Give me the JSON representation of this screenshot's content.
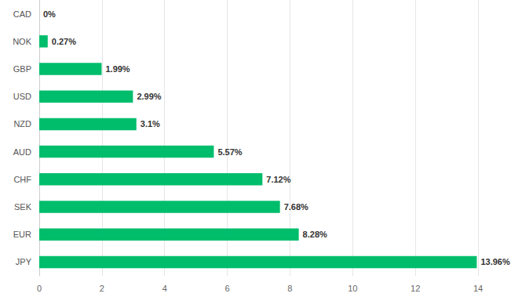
{
  "chart_data": {
    "type": "bar",
    "orientation": "horizontal",
    "categories": [
      "CAD",
      "NOK",
      "GBP",
      "USD",
      "NZD",
      "AUD",
      "CHF",
      "SEK",
      "EUR",
      "JPY"
    ],
    "values": [
      0,
      0.27,
      1.99,
      2.99,
      3.1,
      5.57,
      7.12,
      7.68,
      8.28,
      13.96
    ],
    "value_labels": [
      "0%",
      "0.27%",
      "1.99%",
      "2.99%",
      "3.1%",
      "5.57%",
      "7.12%",
      "7.68%",
      "8.28%",
      "13.96%"
    ],
    "color": "#00bd6c",
    "xlim": [
      0,
      14
    ],
    "xticks": [
      0,
      2,
      4,
      6,
      8,
      10,
      12,
      14
    ],
    "grid": true,
    "data_labels": true
  }
}
